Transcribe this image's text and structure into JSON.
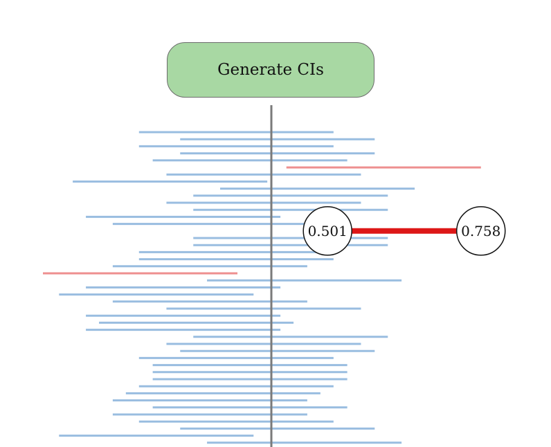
{
  "button": {
    "label": "Generate CIs"
  },
  "chart_data": {
    "type": "interval",
    "true_value_line": "center",
    "xlim": [
      0.024,
      0.836
    ],
    "colors": {
      "covers": "#99bde0",
      "misses": "#ee8f8f",
      "highlight": "#dd1717",
      "true_line": "#7a7a7a"
    },
    "intervals": [
      {
        "lo": 0.185,
        "hi": 0.511,
        "covers": true
      },
      {
        "lo": 0.254,
        "hi": 0.58,
        "covers": true
      },
      {
        "lo": 0.185,
        "hi": 0.511,
        "covers": true
      },
      {
        "lo": 0.254,
        "hi": 0.58,
        "covers": true
      },
      {
        "lo": 0.208,
        "hi": 0.534,
        "covers": true
      },
      {
        "lo": 0.432,
        "hi": 0.758,
        "covers": false
      },
      {
        "lo": 0.231,
        "hi": 0.557,
        "covers": true
      },
      {
        "lo": 0.074,
        "hi": 0.4,
        "covers": true
      },
      {
        "lo": 0.321,
        "hi": 0.647,
        "covers": true
      },
      {
        "lo": 0.276,
        "hi": 0.602,
        "covers": true
      },
      {
        "lo": 0.231,
        "hi": 0.557,
        "covers": true
      },
      {
        "lo": 0.276,
        "hi": 0.602,
        "covers": true
      },
      {
        "lo": 0.096,
        "hi": 0.422,
        "covers": true
      },
      {
        "lo": 0.141,
        "hi": 0.467,
        "covers": true
      },
      {
        "lo": 0.501,
        "hi": 0.758,
        "covers": true,
        "highlight": true,
        "lo_label": "0.501",
        "hi_label": "0.758"
      },
      {
        "lo": 0.276,
        "hi": 0.602,
        "covers": true
      },
      {
        "lo": 0.276,
        "hi": 0.602,
        "covers": true
      },
      {
        "lo": 0.185,
        "hi": 0.511,
        "covers": true
      },
      {
        "lo": 0.185,
        "hi": 0.511,
        "covers": true
      },
      {
        "lo": 0.141,
        "hi": 0.467,
        "covers": true
      },
      {
        "lo": 0.024,
        "hi": 0.35,
        "covers": false
      },
      {
        "lo": 0.299,
        "hi": 0.625,
        "covers": true
      },
      {
        "lo": 0.096,
        "hi": 0.422,
        "covers": true
      },
      {
        "lo": 0.051,
        "hi": 0.377,
        "covers": true
      },
      {
        "lo": 0.141,
        "hi": 0.467,
        "covers": true
      },
      {
        "lo": 0.231,
        "hi": 0.557,
        "covers": true
      },
      {
        "lo": 0.096,
        "hi": 0.422,
        "covers": true
      },
      {
        "lo": 0.118,
        "hi": 0.444,
        "covers": true
      },
      {
        "lo": 0.096,
        "hi": 0.422,
        "covers": true
      },
      {
        "lo": 0.276,
        "hi": 0.602,
        "covers": true
      },
      {
        "lo": 0.231,
        "hi": 0.557,
        "covers": true
      },
      {
        "lo": 0.254,
        "hi": 0.58,
        "covers": true
      },
      {
        "lo": 0.185,
        "hi": 0.511,
        "covers": true
      },
      {
        "lo": 0.208,
        "hi": 0.534,
        "covers": true
      },
      {
        "lo": 0.208,
        "hi": 0.534,
        "covers": true
      },
      {
        "lo": 0.208,
        "hi": 0.534,
        "covers": true
      },
      {
        "lo": 0.185,
        "hi": 0.511,
        "covers": true
      },
      {
        "lo": 0.163,
        "hi": 0.489,
        "covers": true
      },
      {
        "lo": 0.141,
        "hi": 0.467,
        "covers": true
      },
      {
        "lo": 0.208,
        "hi": 0.534,
        "covers": true
      },
      {
        "lo": 0.141,
        "hi": 0.467,
        "covers": true
      },
      {
        "lo": 0.185,
        "hi": 0.511,
        "covers": true
      },
      {
        "lo": 0.254,
        "hi": 0.58,
        "covers": true
      },
      {
        "lo": 0.051,
        "hi": 0.377,
        "covers": true
      },
      {
        "lo": 0.299,
        "hi": 0.625,
        "covers": true
      }
    ]
  }
}
